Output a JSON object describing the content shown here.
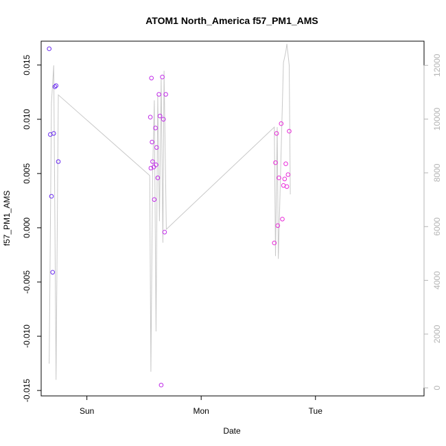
{
  "chart_data": {
    "type": "scatter",
    "title": "ATOM1 North_America f57_PM1_AMS",
    "xlabel": "Date",
    "ylabel": "f57_PM1_AMS",
    "ylim": [
      -0.0155,
      0.0172
    ],
    "xlim": [
      -0.4,
      2.95
    ],
    "x_ticks": [
      {
        "value": 0,
        "label": "Sun"
      },
      {
        "value": 1,
        "label": "Mon"
      },
      {
        "value": 2,
        "label": "Tue"
      }
    ],
    "y_ticks": [
      {
        "value": -0.015,
        "label": "-0.015"
      },
      {
        "value": -0.01,
        "label": "-0.010"
      },
      {
        "value": -0.005,
        "label": "-0.005"
      },
      {
        "value": 0.0,
        "label": "0.000"
      },
      {
        "value": 0.005,
        "label": "0.005"
      },
      {
        "value": 0.01,
        "label": "0.010"
      },
      {
        "value": 0.015,
        "label": "0.015"
      }
    ],
    "y2lim": [
      -300,
      12900
    ],
    "y2_ticks": [
      {
        "value": 0,
        "label": "0"
      },
      {
        "value": 2000,
        "label": "2000"
      },
      {
        "value": 4000,
        "label": "4000"
      },
      {
        "value": 6000,
        "label": "6000"
      },
      {
        "value": 8000,
        "label": "8000"
      },
      {
        "value": 10000,
        "label": "10000"
      },
      {
        "value": 12000,
        "label": "12000"
      }
    ],
    "points": [
      {
        "x": -0.33,
        "y": 0.0165,
        "color": "#6a2cf0"
      },
      {
        "x": -0.32,
        "y": 0.0086,
        "color": "#6a2cf0"
      },
      {
        "x": -0.31,
        "y": 0.0029,
        "color": "#6a2cf0"
      },
      {
        "x": -0.3,
        "y": -0.0041,
        "color": "#6a2cf0"
      },
      {
        "x": -0.29,
        "y": 0.0087,
        "color": "#6a2cf0"
      },
      {
        "x": -0.28,
        "y": 0.013,
        "color": "#6a2cf0"
      },
      {
        "x": -0.27,
        "y": 0.0131,
        "color": "#6a2cf0"
      },
      {
        "x": -0.25,
        "y": 0.0061,
        "color": "#6a2cf0"
      },
      {
        "x": 0.555,
        "y": 0.0102,
        "color": "#c02ae8"
      },
      {
        "x": 0.56,
        "y": 0.0055,
        "color": "#c02ae8"
      },
      {
        "x": 0.565,
        "y": 0.0138,
        "color": "#c02ae8"
      },
      {
        "x": 0.57,
        "y": 0.0079,
        "color": "#c02ae8"
      },
      {
        "x": 0.575,
        "y": 0.0061,
        "color": "#c02ae8"
      },
      {
        "x": 0.585,
        "y": 0.0056,
        "color": "#c02ae8"
      },
      {
        "x": 0.59,
        "y": 0.0026,
        "color": "#c02ae8"
      },
      {
        "x": 0.6,
        "y": 0.0092,
        "color": "#c02ae8"
      },
      {
        "x": 0.605,
        "y": 0.0058,
        "color": "#c02ae8"
      },
      {
        "x": 0.61,
        "y": 0.0074,
        "color": "#c02ae8"
      },
      {
        "x": 0.62,
        "y": 0.0046,
        "color": "#c02ae8"
      },
      {
        "x": 0.63,
        "y": 0.0123,
        "color": "#c02ae8"
      },
      {
        "x": 0.64,
        "y": 0.0103,
        "color": "#c02ae8"
      },
      {
        "x": 0.65,
        "y": -0.0145,
        "color": "#c02ae8"
      },
      {
        "x": 0.66,
        "y": 0.0139,
        "color": "#c02ae8"
      },
      {
        "x": 0.67,
        "y": 0.01,
        "color": "#c02ae8"
      },
      {
        "x": 0.68,
        "y": -0.0004,
        "color": "#c02ae8"
      },
      {
        "x": 0.69,
        "y": 0.0123,
        "color": "#c02ae8"
      },
      {
        "x": 1.64,
        "y": -0.0014,
        "color": "#e82ad8"
      },
      {
        "x": 1.65,
        "y": 0.006,
        "color": "#e82ad8"
      },
      {
        "x": 1.66,
        "y": 0.0087,
        "color": "#e82ad8"
      },
      {
        "x": 1.67,
        "y": 0.0002,
        "color": "#e82ad8"
      },
      {
        "x": 1.68,
        "y": 0.0046,
        "color": "#e82ad8"
      },
      {
        "x": 1.7,
        "y": 0.0096,
        "color": "#e82ad8"
      },
      {
        "x": 1.71,
        "y": 0.0008,
        "color": "#e82ad8"
      },
      {
        "x": 1.72,
        "y": 0.0039,
        "color": "#e82ad8"
      },
      {
        "x": 1.73,
        "y": 0.0045,
        "color": "#e82ad8"
      },
      {
        "x": 1.74,
        "y": 0.0059,
        "color": "#e82ad8"
      },
      {
        "x": 1.75,
        "y": 0.0038,
        "color": "#e82ad8"
      },
      {
        "x": 1.76,
        "y": 0.0049,
        "color": "#e82ad8"
      },
      {
        "x": 1.77,
        "y": 0.0089,
        "color": "#e82ad8"
      }
    ],
    "line_color": "#c8c8c8",
    "line": [
      {
        "x": -0.33,
        "y2": 900
      },
      {
        "x": -0.31,
        "y2": 10600
      },
      {
        "x": -0.29,
        "y2": 12000
      },
      {
        "x": -0.27,
        "y2": 300
      },
      {
        "x": -0.25,
        "y2": 10900
      },
      {
        "x": 0.55,
        "y2": 7900
      },
      {
        "x": 0.56,
        "y2": 600
      },
      {
        "x": 0.575,
        "y2": 7900
      },
      {
        "x": 0.59,
        "y2": 10700
      },
      {
        "x": 0.605,
        "y2": 2100
      },
      {
        "x": 0.62,
        "y2": 10900
      },
      {
        "x": 0.635,
        "y2": 6200
      },
      {
        "x": 0.65,
        "y2": 11500
      },
      {
        "x": 0.665,
        "y2": 5400
      },
      {
        "x": 0.675,
        "y2": 11800
      },
      {
        "x": 0.695,
        "y2": 5900
      },
      {
        "x": 1.64,
        "y2": 9700
      },
      {
        "x": 1.65,
        "y2": 4900
      },
      {
        "x": 1.665,
        "y2": 9700
      },
      {
        "x": 1.675,
        "y2": 4800
      },
      {
        "x": 1.69,
        "y2": 7200
      },
      {
        "x": 1.72,
        "y2": 12100
      },
      {
        "x": 1.74,
        "y2": 12500
      },
      {
        "x": 1.75,
        "y2": 12800
      },
      {
        "x": 1.77,
        "y2": 12000
      },
      {
        "x": 1.78,
        "y2": 7200
      }
    ]
  }
}
